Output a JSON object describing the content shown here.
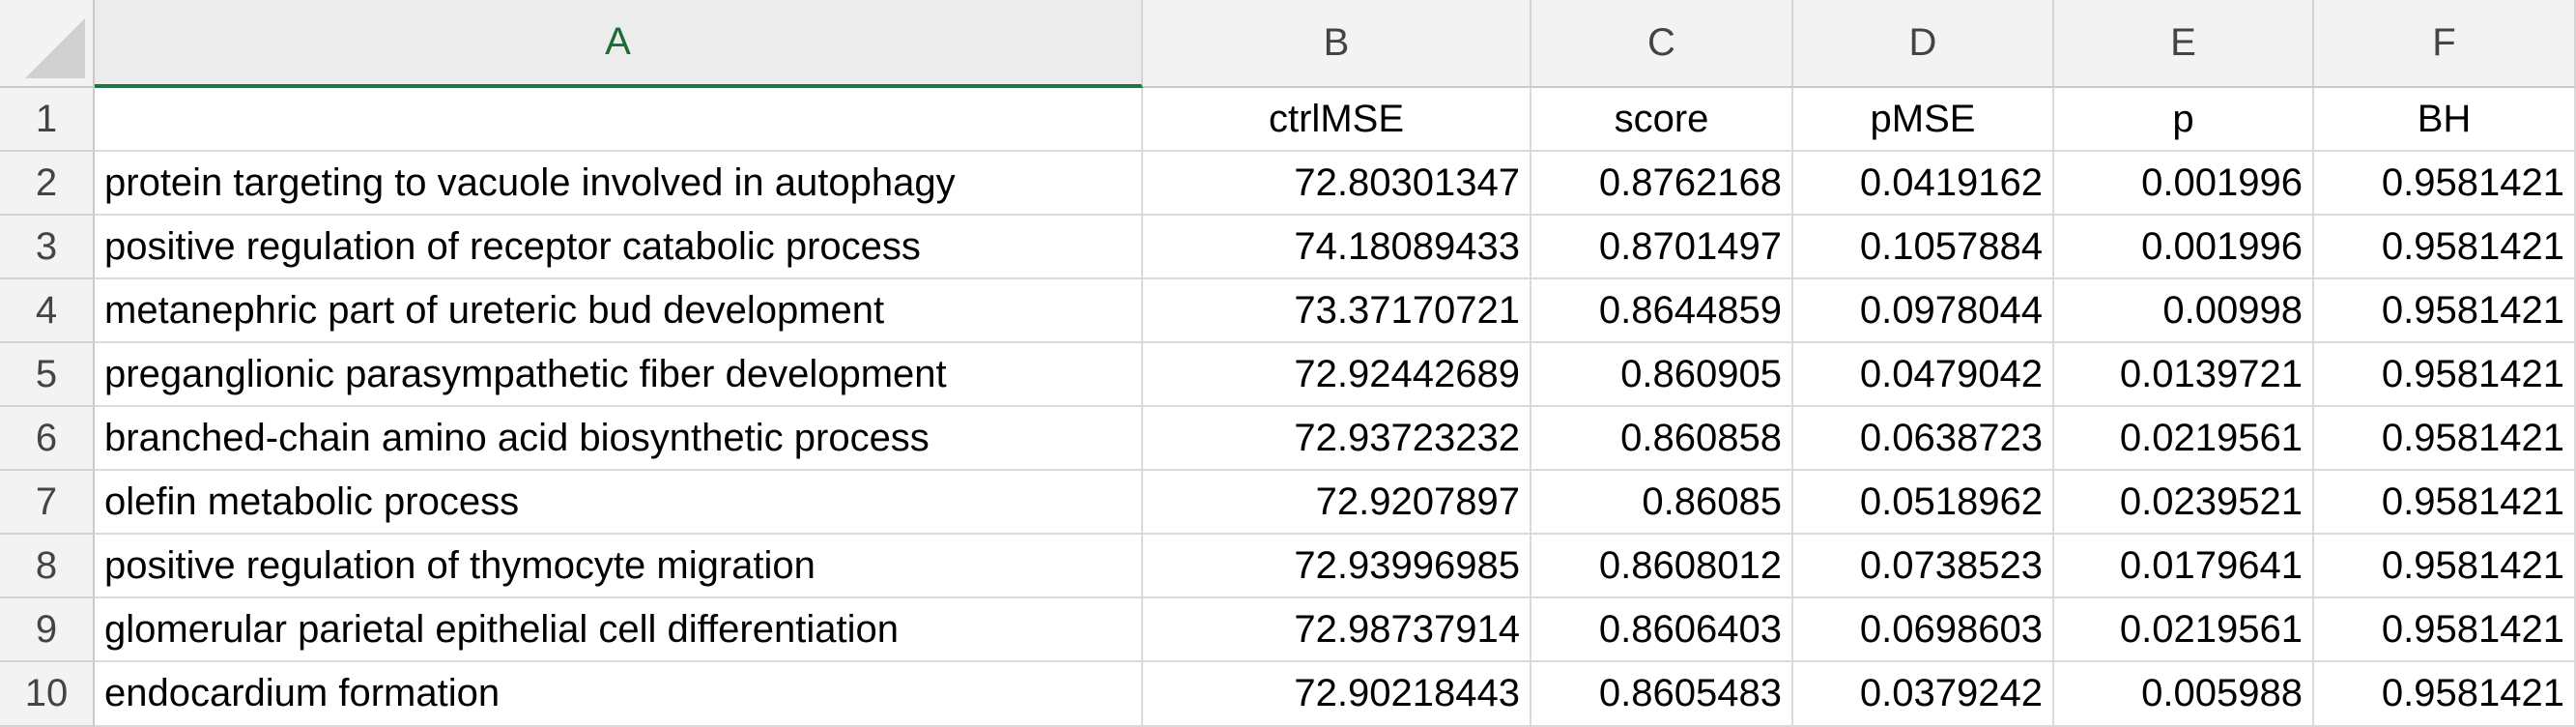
{
  "columns": [
    "A",
    "B",
    "C",
    "D",
    "E",
    "F"
  ],
  "active_column": "A",
  "header_row": {
    "row_number": "1",
    "cells": [
      "",
      "ctrlMSE",
      "score",
      "pMSE",
      "p",
      "BH"
    ]
  },
  "rows": [
    {
      "row_number": "2",
      "cells": [
        "protein targeting to vacuole involved in autophagy",
        "72.80301347",
        "0.8762168",
        "0.0419162",
        "0.001996",
        "0.9581421"
      ]
    },
    {
      "row_number": "3",
      "cells": [
        "positive regulation of receptor catabolic process",
        "74.18089433",
        "0.8701497",
        "0.1057884",
        "0.001996",
        "0.9581421"
      ]
    },
    {
      "row_number": "4",
      "cells": [
        "metanephric part of ureteric bud development",
        "73.37170721",
        "0.8644859",
        "0.0978044",
        "0.00998",
        "0.9581421"
      ]
    },
    {
      "row_number": "5",
      "cells": [
        "preganglionic parasympathetic fiber development",
        "72.92442689",
        "0.860905",
        "0.0479042",
        "0.0139721",
        "0.9581421"
      ]
    },
    {
      "row_number": "6",
      "cells": [
        "branched-chain amino acid biosynthetic process",
        "72.93723232",
        "0.860858",
        "0.0638723",
        "0.0219561",
        "0.9581421"
      ]
    },
    {
      "row_number": "7",
      "cells": [
        "olefin metabolic process",
        "72.9207897",
        "0.86085",
        "0.0518962",
        "0.0239521",
        "0.9581421"
      ]
    },
    {
      "row_number": "8",
      "cells": [
        "positive regulation of thymocyte migration",
        "72.93996985",
        "0.8608012",
        "0.0738523",
        "0.0179641",
        "0.9581421"
      ]
    },
    {
      "row_number": "9",
      "cells": [
        "glomerular parietal epithelial cell differentiation",
        "72.98737914",
        "0.8606403",
        "0.0698603",
        "0.0219561",
        "0.9581421"
      ]
    },
    {
      "row_number": "10",
      "cells": [
        "endocardium formation",
        "72.90218443",
        "0.8605483",
        "0.0379242",
        "0.005988",
        "0.9581421"
      ]
    }
  ],
  "colors": {
    "header_bg": "#f3f3f3",
    "active_header_text": "#1f6b36",
    "active_header_underline": "#217346",
    "grid": "#dadada"
  }
}
